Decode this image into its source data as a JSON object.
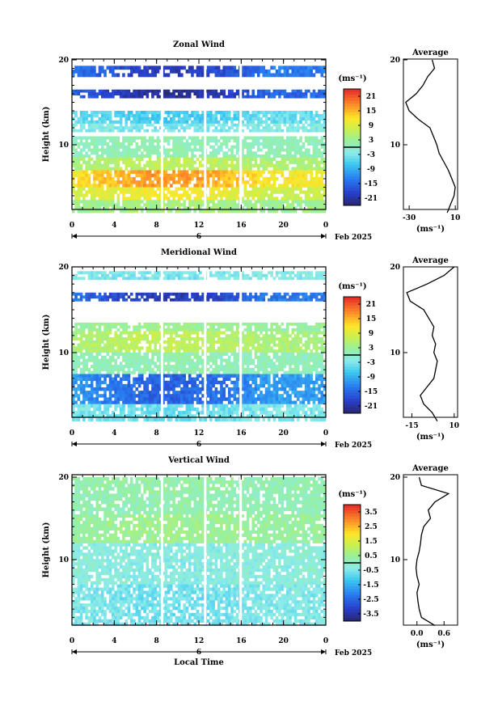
{
  "figure": {
    "date_label": "Feb 2025",
    "xlabel": "Local Time",
    "day_label": "6",
    "avg_title": "Average",
    "unit_label": "(ms⁻¹)"
  },
  "chart_data": [
    {
      "type": "heatmap",
      "title": "Zonal Wind",
      "xlabel": "",
      "ylabel": "Height (km)",
      "x_ticks": [
        "0",
        "4",
        "8",
        "12",
        "16",
        "20",
        "0"
      ],
      "xlim": [
        0,
        24
      ],
      "y_ticks": [
        "20",
        "10"
      ],
      "ylim": [
        1.5,
        20.5
      ],
      "colorbar": {
        "label": "(ms⁻¹)",
        "min": -24,
        "max": 24,
        "ticks": [
          "21",
          "15",
          "9",
          "3",
          "-3",
          "-9",
          "-15",
          "-21"
        ],
        "zero_line": 0
      },
      "bands": [
        {
          "z0": 18.0,
          "z1": 19.3,
          "value": -18
        },
        {
          "z0": 15.5,
          "z1": 16.5,
          "value": -20
        },
        {
          "z0": 12.5,
          "z1": 14.0,
          "value": -6
        },
        {
          "z0": 11.5,
          "z1": 12.5,
          "value": -3
        },
        {
          "z0": 8.5,
          "z1": 11.0,
          "value": 1
        },
        {
          "z0": 7.0,
          "z1": 8.5,
          "value": 6
        },
        {
          "z0": 5.0,
          "z1": 7.0,
          "value": 15
        },
        {
          "z0": 3.5,
          "z1": 5.0,
          "value": 10
        },
        {
          "z0": 2.0,
          "z1": 3.5,
          "value": 4
        }
      ],
      "profile": {
        "title": "Average",
        "xlabel": "(ms⁻¹)",
        "x_ticks": [
          "-30",
          "10"
        ],
        "xlim": [
          -35,
          12
        ],
        "heights": [
          2,
          3,
          4,
          5,
          6,
          7,
          8,
          9,
          10,
          11,
          12,
          13,
          14,
          15,
          16,
          17,
          18,
          19,
          20
        ],
        "values": [
          3,
          6,
          9,
          10,
          7,
          4,
          0,
          -4,
          -6,
          -9,
          -12,
          -22,
          -30,
          -33,
          -24,
          -18,
          -14,
          -8,
          -10
        ]
      }
    },
    {
      "type": "heatmap",
      "title": "Meridional Wind",
      "xlabel": "",
      "ylabel": "Height (km)",
      "x_ticks": [
        "0",
        "4",
        "8",
        "12",
        "16",
        "20",
        "0"
      ],
      "xlim": [
        0,
        24
      ],
      "y_ticks": [
        "20",
        "10"
      ],
      "ylim": [
        1.5,
        20.5
      ],
      "colorbar": {
        "label": "(ms⁻¹)",
        "min": -24,
        "max": 24,
        "ticks": [
          "21",
          "15",
          "9",
          "3",
          "-3",
          "-9",
          "-15",
          "-21"
        ],
        "zero_line": 0
      },
      "bands": [
        {
          "z0": 18.5,
          "z1": 19.5,
          "value": -3
        },
        {
          "z0": 16.0,
          "z1": 17.0,
          "value": -18
        },
        {
          "z0": 12.5,
          "z1": 13.5,
          "value": 3
        },
        {
          "z0": 10.0,
          "z1": 12.5,
          "value": 6
        },
        {
          "z0": 7.5,
          "z1": 10.0,
          "value": 1
        },
        {
          "z0": 4.0,
          "z1": 7.5,
          "value": -14
        },
        {
          "z0": 2.0,
          "z1": 4.0,
          "value": -4
        }
      ],
      "profile": {
        "title": "Average",
        "xlabel": "(ms⁻¹)",
        "x_ticks": [
          "-15",
          "10"
        ],
        "xlim": [
          -20,
          12
        ],
        "heights": [
          2,
          3,
          4,
          5,
          6,
          7,
          8,
          9,
          10,
          11,
          12,
          13,
          14,
          15,
          16,
          17,
          18,
          19,
          20
        ],
        "values": [
          0,
          -3,
          -8,
          -10,
          -6,
          -2,
          -1,
          0,
          -2,
          -1,
          -3,
          -2,
          -5,
          -8,
          -16,
          -18,
          -6,
          4,
          10
        ]
      }
    },
    {
      "type": "heatmap",
      "title": "Vertical Wind",
      "xlabel": "Local Time",
      "ylabel": "Height (km)",
      "x_ticks": [
        "0",
        "4",
        "8",
        "12",
        "16",
        "20",
        "0"
      ],
      "xlim": [
        0,
        24
      ],
      "y_ticks": [
        "20",
        "10"
      ],
      "ylim": [
        1.5,
        20.5
      ],
      "colorbar": {
        "label": "(ms⁻¹)",
        "min": -4,
        "max": 4,
        "ticks": [
          "3.5",
          "2.5",
          "1.5",
          "0.5",
          "-0.5",
          "-1.5",
          "-2.5",
          "-3.5"
        ],
        "zero_line": 0
      },
      "bands": [
        {
          "z0": 18.0,
          "z1": 20.0,
          "value": 0.3
        },
        {
          "z0": 15.5,
          "z1": 18.0,
          "value": 0.2
        },
        {
          "z0": 12.0,
          "z1": 15.5,
          "value": 0.5
        },
        {
          "z0": 7.0,
          "z1": 12.0,
          "value": -0.3
        },
        {
          "z0": 2.0,
          "z1": 7.0,
          "value": -0.6
        }
      ],
      "profile": {
        "title": "Average",
        "xlabel": "(ms⁻¹)",
        "x_ticks": [
          "0.0",
          "0.6"
        ],
        "xlim": [
          -0.3,
          0.9
        ],
        "heights": [
          2,
          3,
          4,
          5,
          6,
          7,
          8,
          9,
          10,
          11,
          12,
          13,
          14,
          15,
          16,
          17,
          18,
          19,
          20
        ],
        "values": [
          0.4,
          0.1,
          0.05,
          0.02,
          0.0,
          0.05,
          0.0,
          -0.02,
          0.0,
          0.05,
          0.08,
          0.1,
          0.15,
          0.3,
          0.25,
          0.4,
          0.7,
          0.1,
          0.05
        ]
      }
    }
  ]
}
